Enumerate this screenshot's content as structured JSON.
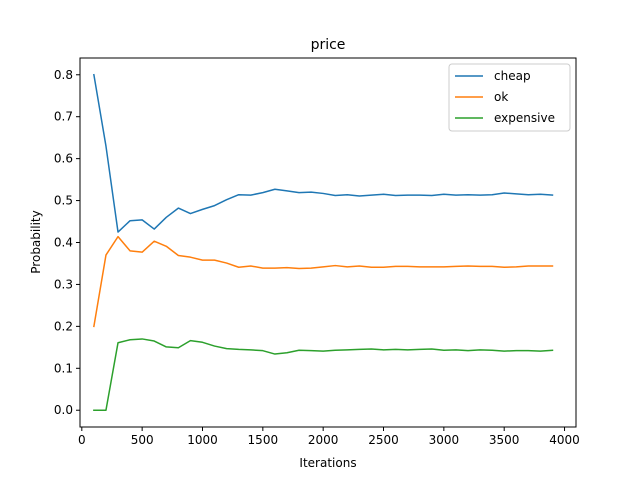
{
  "chart_data": {
    "type": "line",
    "title": "price",
    "xlabel": "Iterations",
    "ylabel": "Probability",
    "xlim": [
      -15,
      4095
    ],
    "ylim": [
      -0.04,
      0.84
    ],
    "xticks": [
      0,
      500,
      1000,
      1500,
      2000,
      2500,
      3000,
      3500,
      4000
    ],
    "xtick_labels": [
      "0",
      "500",
      "1000",
      "1500",
      "2000",
      "2500",
      "3000",
      "3500",
      "4000"
    ],
    "yticks": [
      0.0,
      0.1,
      0.2,
      0.3,
      0.4,
      0.5,
      0.6,
      0.7,
      0.8
    ],
    "ytick_labels": [
      "0.0",
      "0.1",
      "0.2",
      "0.3",
      "0.4",
      "0.5",
      "0.6",
      "0.7",
      "0.8"
    ],
    "grid": false,
    "legend_position": "top-right",
    "x": [
      100,
      200,
      300,
      400,
      500,
      600,
      700,
      800,
      900,
      1000,
      1100,
      1200,
      1300,
      1400,
      1500,
      1600,
      1700,
      1800,
      1900,
      2000,
      2100,
      2200,
      2300,
      2400,
      2500,
      2600,
      2700,
      2800,
      2900,
      3000,
      3100,
      3200,
      3300,
      3400,
      3500,
      3600,
      3700,
      3800,
      3900
    ],
    "series": [
      {
        "name": "cheap",
        "color": "#1f77b4",
        "values": [
          0.8,
          0.63,
          0.425,
          0.452,
          0.454,
          0.432,
          0.46,
          0.482,
          0.469,
          0.479,
          0.488,
          0.502,
          0.514,
          0.513,
          0.519,
          0.527,
          0.523,
          0.519,
          0.52,
          0.517,
          0.512,
          0.514,
          0.511,
          0.513,
          0.515,
          0.512,
          0.513,
          0.513,
          0.512,
          0.515,
          0.513,
          0.514,
          0.513,
          0.514,
          0.518,
          0.516,
          0.514,
          0.515,
          0.513
        ]
      },
      {
        "name": "ok",
        "color": "#ff7f0e",
        "values": [
          0.2,
          0.37,
          0.414,
          0.38,
          0.377,
          0.403,
          0.391,
          0.369,
          0.365,
          0.358,
          0.358,
          0.351,
          0.341,
          0.344,
          0.339,
          0.339,
          0.34,
          0.338,
          0.339,
          0.342,
          0.345,
          0.342,
          0.344,
          0.341,
          0.341,
          0.343,
          0.343,
          0.342,
          0.342,
          0.342,
          0.343,
          0.344,
          0.343,
          0.343,
          0.341,
          0.342,
          0.344,
          0.344,
          0.344
        ]
      },
      {
        "name": "expensive",
        "color": "#2ca02c",
        "values": [
          0.0,
          0.0,
          0.161,
          0.168,
          0.17,
          0.165,
          0.151,
          0.149,
          0.166,
          0.162,
          0.153,
          0.147,
          0.145,
          0.144,
          0.142,
          0.134,
          0.137,
          0.143,
          0.142,
          0.141,
          0.143,
          0.144,
          0.145,
          0.146,
          0.144,
          0.145,
          0.144,
          0.145,
          0.146,
          0.143,
          0.144,
          0.142,
          0.144,
          0.143,
          0.141,
          0.142,
          0.142,
          0.141,
          0.143
        ]
      }
    ]
  }
}
